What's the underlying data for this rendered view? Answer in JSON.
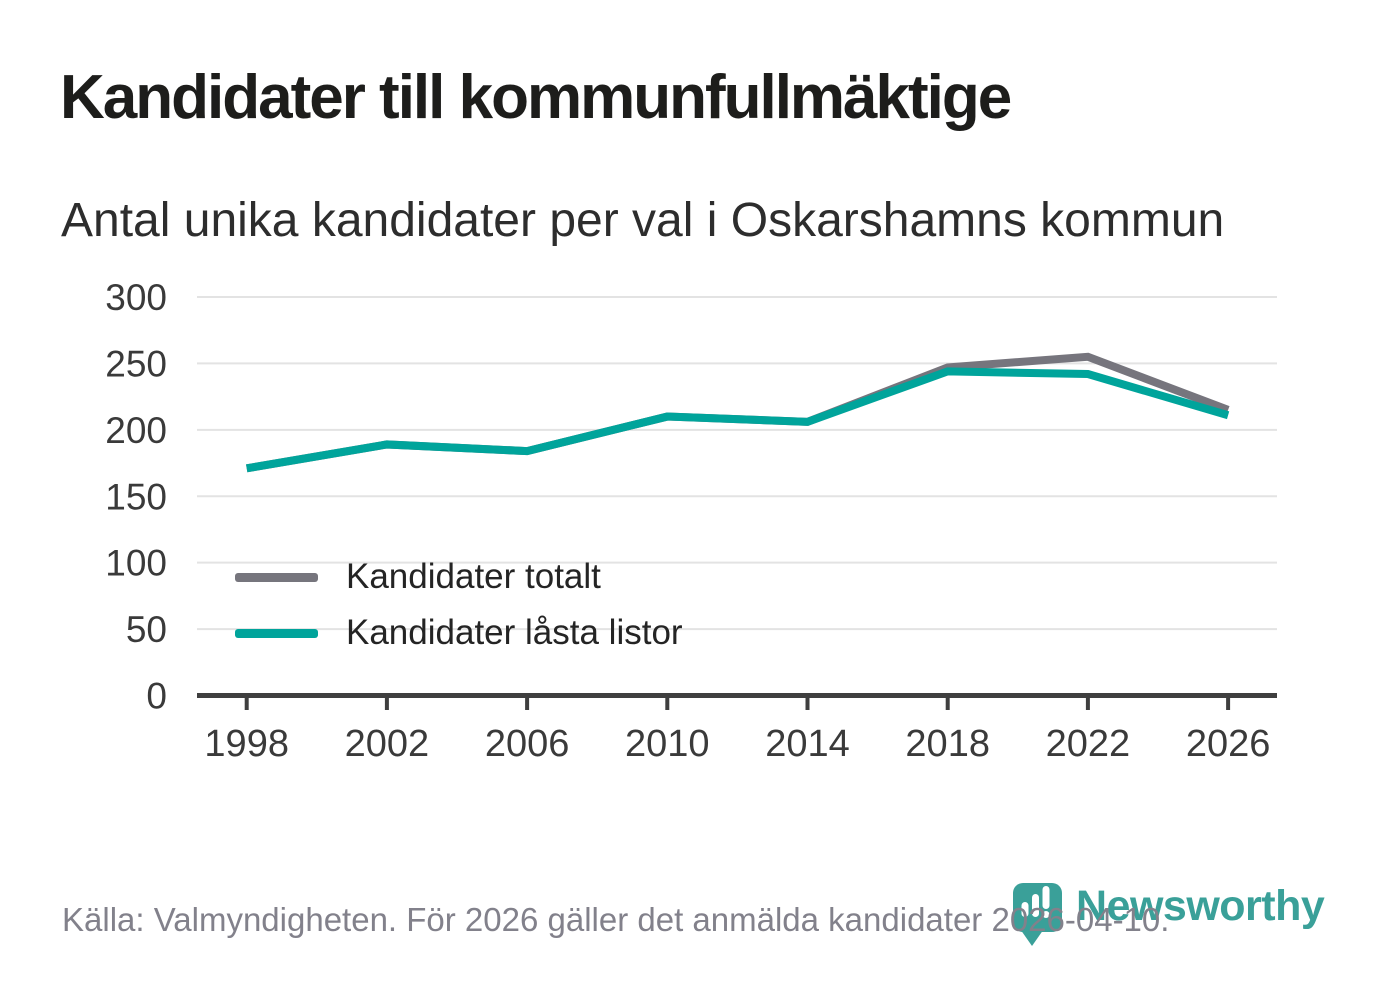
{
  "header": {
    "title": "Kandidater till kommunfullmäktige",
    "subtitle": "Antal unika kandidater per val i Oskarshamns kommun"
  },
  "chart_data": {
    "type": "line",
    "x": [
      1998,
      2002,
      2006,
      2010,
      2014,
      2018,
      2022,
      2026
    ],
    "series": [
      {
        "name": "Kandidater totalt",
        "color": "#76757D",
        "values": [
          171,
          189,
          184,
          210,
          206,
          247,
          255,
          215
        ]
      },
      {
        "name": "Kandidater låsta listor",
        "color": "#00A49B",
        "values": [
          171,
          189,
          184,
          210,
          206,
          244,
          242,
          211
        ]
      }
    ],
    "ylim": [
      0,
      300
    ],
    "yticks": [
      0,
      50,
      100,
      150,
      200,
      250,
      300
    ],
    "grid": "horizontal",
    "legend_position": "inside-left-bottom",
    "colors": {
      "axis_line": "#3F3F3F",
      "gridline": "#E3E3E3",
      "tick_label": "#3A3A3A"
    }
  },
  "footer": {
    "source": "Källa: Valmyndigheten. För 2026 gäller det anmälda kandidater 2026-04-10."
  },
  "branding": {
    "name": "Newsworthy",
    "color": "#3AA099",
    "icon": "newsworthy-chart-pin-icon"
  }
}
